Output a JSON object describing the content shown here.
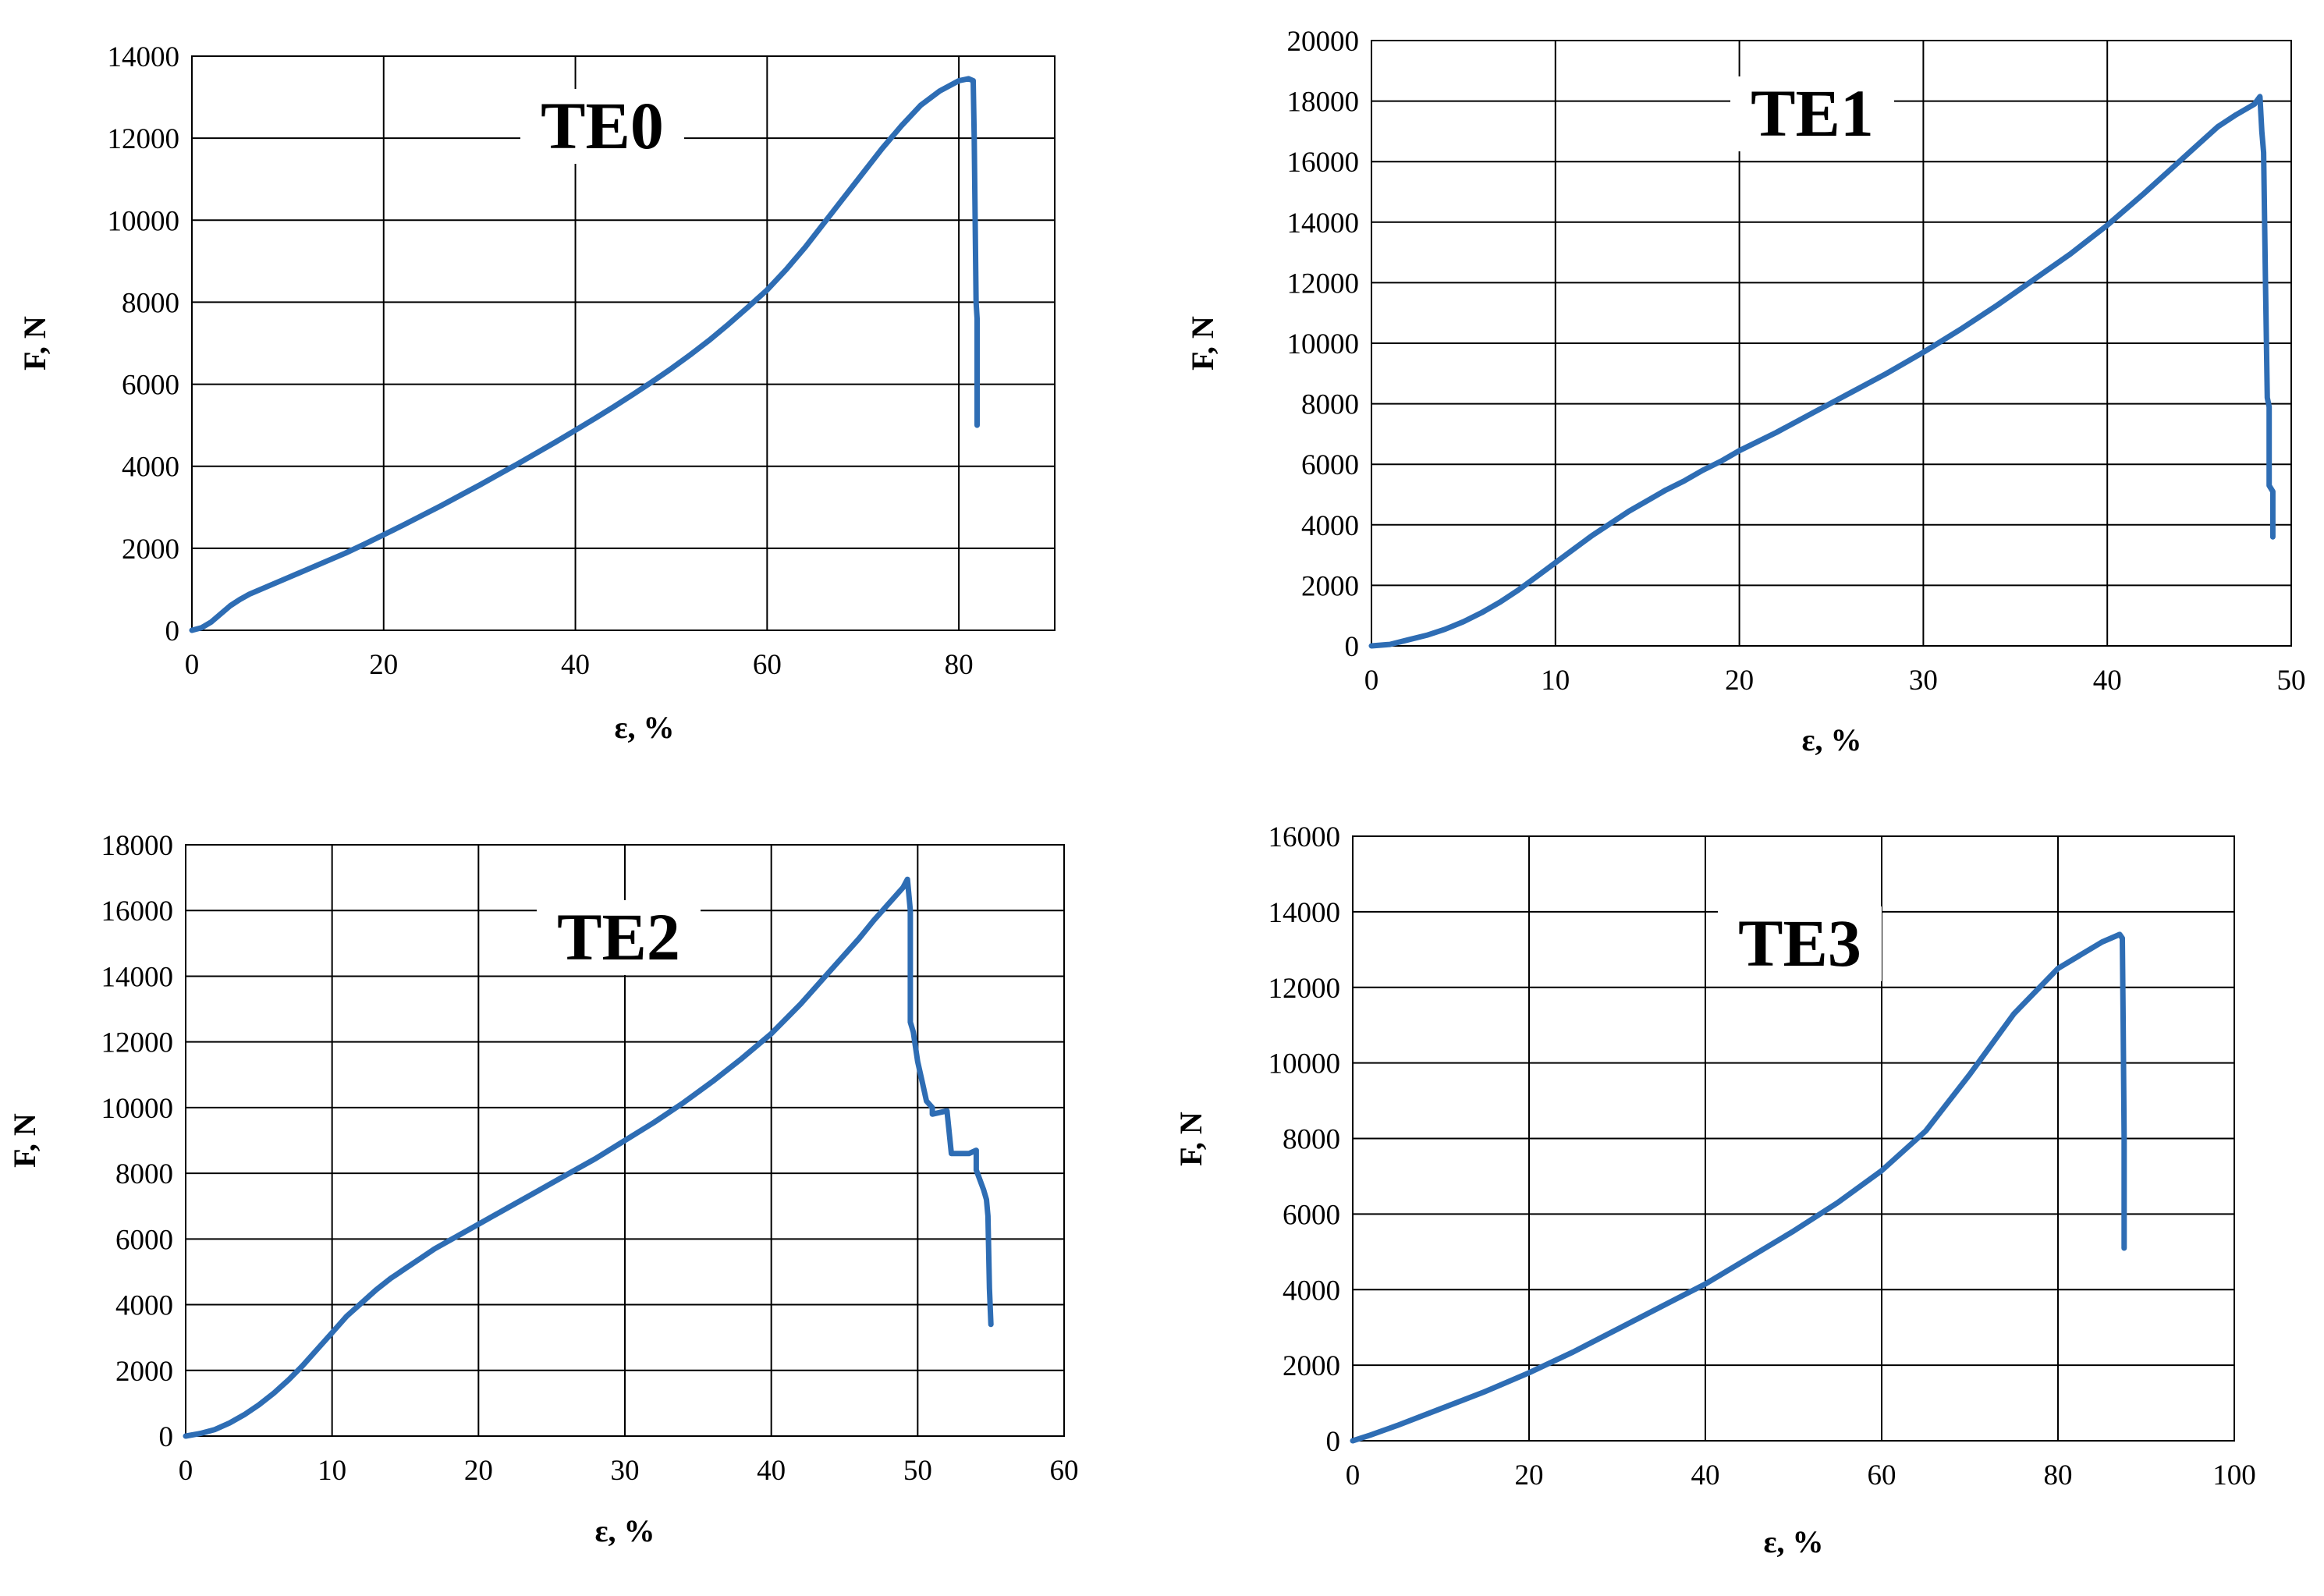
{
  "figure": {
    "background": "#ffffff",
    "line_color": "#2e6db4",
    "grid_color": "#000000"
  },
  "chart_data": [
    {
      "type": "line",
      "title": "TE0",
      "xlabel": "ε, %",
      "ylabel": "F, N",
      "xlim": [
        0,
        90
      ],
      "ylim": [
        0,
        14000
      ],
      "xticks": [
        0,
        20,
        40,
        60,
        80
      ],
      "yticks": [
        0,
        2000,
        4000,
        6000,
        8000,
        10000,
        12000,
        14000
      ],
      "grid": true,
      "series": [
        {
          "x": [
            0,
            1,
            2,
            3,
            4,
            5,
            6,
            8,
            10,
            12,
            14,
            16,
            18,
            20,
            22,
            24,
            26,
            28,
            30,
            32,
            34,
            36,
            38,
            40,
            42,
            44,
            46,
            48,
            50,
            52,
            54,
            56,
            58,
            60,
            62,
            64,
            66,
            68,
            70,
            72,
            74,
            76,
            78,
            80,
            81,
            81.5,
            81.6,
            81.7,
            81.8,
            81.9,
            81.9
          ],
          "y": [
            0,
            60,
            200,
            400,
            600,
            750,
            880,
            1080,
            1280,
            1480,
            1680,
            1880,
            2100,
            2330,
            2560,
            2800,
            3040,
            3290,
            3540,
            3800,
            4060,
            4330,
            4600,
            4880,
            5160,
            5450,
            5750,
            6060,
            6380,
            6720,
            7080,
            7470,
            7880,
            8300,
            8800,
            9350,
            9950,
            10550,
            11150,
            11750,
            12300,
            12800,
            13150,
            13400,
            13450,
            13400,
            12000,
            10000,
            8000,
            7600,
            5000
          ]
        }
      ]
    },
    {
      "type": "line",
      "title": "TE1",
      "xlabel": "ε, %",
      "ylabel": "F, N",
      "xlim": [
        0,
        50
      ],
      "ylim": [
        0,
        20000
      ],
      "xticks": [
        0,
        10,
        20,
        30,
        40,
        50
      ],
      "yticks": [
        0,
        2000,
        4000,
        6000,
        8000,
        10000,
        12000,
        14000,
        16000,
        18000,
        20000
      ],
      "grid": true,
      "series": [
        {
          "x": [
            0,
            1,
            2,
            3,
            4,
            5,
            6,
            7,
            8,
            9,
            10,
            11,
            12,
            13,
            14,
            15,
            16,
            17,
            18,
            19,
            20,
            22,
            24,
            26,
            28,
            30,
            32,
            34,
            36,
            38,
            40,
            42,
            44,
            45,
            46,
            47,
            48,
            48.3,
            48.4,
            48.5,
            48.6,
            48.7,
            48.8,
            48.8,
            49.0,
            49.0
          ],
          "y": [
            0,
            50,
            200,
            350,
            550,
            800,
            1100,
            1450,
            1850,
            2300,
            2750,
            3200,
            3650,
            4050,
            4450,
            4800,
            5150,
            5450,
            5800,
            6100,
            6450,
            7050,
            7700,
            8350,
            9000,
            9700,
            10450,
            11250,
            12100,
            12950,
            13900,
            14950,
            16050,
            16600,
            17150,
            17550,
            17900,
            18150,
            17000,
            16300,
            12000,
            8200,
            7900,
            5300,
            5100,
            3600
          ]
        }
      ]
    },
    {
      "type": "line",
      "title": "TE2",
      "xlabel": "ε, %",
      "ylabel": "F, N",
      "xlim": [
        0,
        60
      ],
      "ylim": [
        0,
        18000
      ],
      "xticks": [
        0,
        10,
        20,
        30,
        40,
        50,
        60
      ],
      "yticks": [
        0,
        2000,
        4000,
        6000,
        8000,
        10000,
        12000,
        14000,
        16000,
        18000
      ],
      "grid": true,
      "series": [
        {
          "x": [
            0,
            1,
            2,
            3,
            4,
            5,
            6,
            7,
            8,
            9,
            10,
            11,
            12,
            13,
            14,
            15,
            16,
            17,
            18,
            19,
            20,
            22,
            24,
            26,
            28,
            30,
            32,
            34,
            36,
            38,
            40,
            42,
            44,
            46,
            47,
            48,
            49,
            49.3,
            49.5,
            49.5,
            49.7,
            50.0,
            50.3,
            50.6,
            51.0,
            51.0,
            52.0,
            52.3,
            52.5,
            53.5,
            54.0,
            54.0,
            54.5,
            54.7,
            54.8,
            54.9,
            55.0
          ],
          "y": [
            0,
            80,
            200,
            400,
            650,
            950,
            1300,
            1700,
            2150,
            2650,
            3150,
            3650,
            4050,
            4450,
            4800,
            5100,
            5400,
            5700,
            5950,
            6200,
            6450,
            6950,
            7450,
            7950,
            8450,
            9000,
            9550,
            10150,
            10800,
            11500,
            12250,
            13150,
            14150,
            15150,
            15700,
            16200,
            16700,
            16950,
            16000,
            12600,
            12300,
            11400,
            10800,
            10200,
            10000,
            9800,
            9900,
            8600,
            8600,
            8600,
            8700,
            8100,
            7500,
            7200,
            6700,
            4500,
            3400
          ]
        }
      ]
    },
    {
      "type": "line",
      "title": "TE3",
      "xlabel": "ε, %",
      "ylabel": "F, N",
      "xlim": [
        0,
        100
      ],
      "ylim": [
        0,
        16000
      ],
      "xticks": [
        0,
        20,
        40,
        60,
        80,
        100
      ],
      "yticks": [
        0,
        2000,
        4000,
        6000,
        8000,
        10000,
        12000,
        14000,
        16000
      ],
      "grid": true,
      "series": [
        {
          "x": [
            0,
            2,
            5,
            10,
            15,
            20,
            25,
            30,
            35,
            40,
            45,
            50,
            55,
            60,
            65,
            70,
            75,
            80,
            85,
            87,
            87.3,
            87.4,
            87.5,
            87.5
          ],
          "y": [
            0,
            150,
            400,
            850,
            1300,
            1800,
            2350,
            2950,
            3550,
            4150,
            4850,
            5550,
            6300,
            7150,
            8200,
            9700,
            11300,
            12500,
            13200,
            13400,
            13300,
            11000,
            8000,
            5100
          ]
        }
      ]
    }
  ]
}
